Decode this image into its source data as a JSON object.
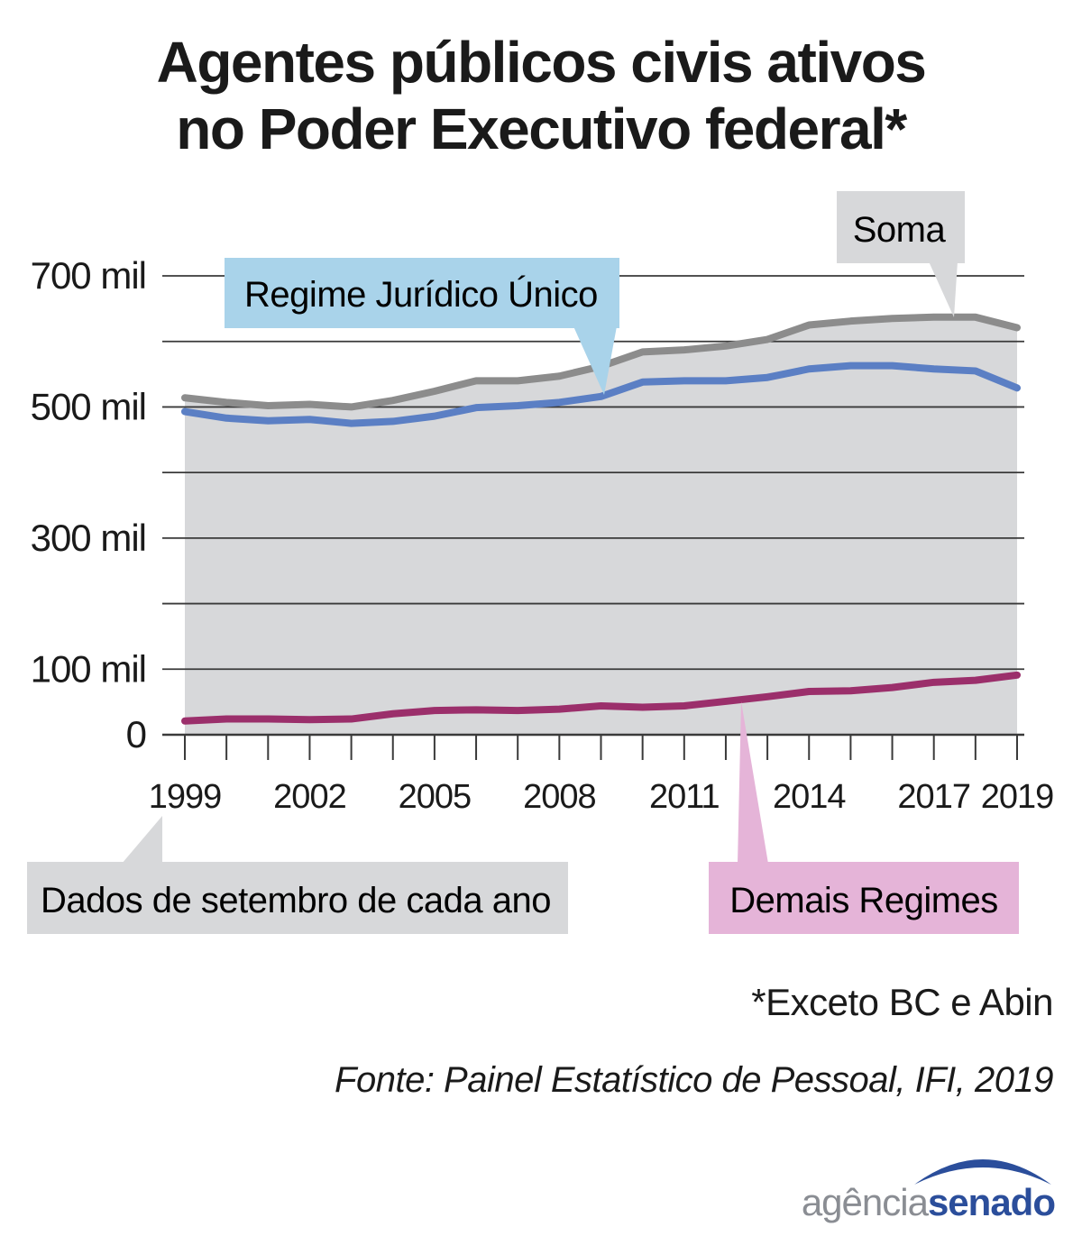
{
  "title": {
    "line1": "Agentes públicos civis ativos",
    "line2": "no Poder Executivo federal*"
  },
  "chart_data": {
    "type": "line",
    "title": "Agentes públicos civis ativos no Poder Executivo federal*",
    "xlabel": "",
    "ylabel": "",
    "ylim": [
      0,
      700000
    ],
    "x": [
      1999,
      2000,
      2001,
      2002,
      2003,
      2004,
      2005,
      2006,
      2007,
      2008,
      2009,
      2010,
      2011,
      2012,
      2013,
      2014,
      2015,
      2016,
      2017,
      2018,
      2019
    ],
    "y_ticks": [
      {
        "value": 700000,
        "label": "700 mil"
      },
      {
        "value": 500000,
        "label": "500 mil"
      },
      {
        "value": 300000,
        "label": "300 mil"
      },
      {
        "value": 100000,
        "label": "100 mil"
      },
      {
        "value": 0,
        "label": "0"
      }
    ],
    "y_gridlines": [
      100000,
      200000,
      300000,
      400000,
      500000,
      600000,
      700000
    ],
    "x_tick_labels": [
      {
        "x": 1999,
        "label": "1999"
      },
      {
        "x": 2002,
        "label": "2002"
      },
      {
        "x": 2005,
        "label": "2005"
      },
      {
        "x": 2008,
        "label": "2008"
      },
      {
        "x": 2011,
        "label": "2011"
      },
      {
        "x": 2014,
        "label": "2014"
      },
      {
        "x": 2017,
        "label": "2017"
      },
      {
        "x": 2019,
        "label": "2019"
      }
    ],
    "series": [
      {
        "name": "Soma",
        "color": "#8c8c8c",
        "fill": "#d7d8da",
        "values": [
          514000,
          507000,
          502000,
          504000,
          500000,
          510000,
          524000,
          540000,
          540000,
          547000,
          562000,
          584000,
          587000,
          593000,
          603000,
          625000,
          631000,
          635000,
          637000,
          637000,
          621000
        ]
      },
      {
        "name": "Regime Jurídico Único",
        "color": "#5b7fc4",
        "values": [
          493000,
          483000,
          479000,
          481000,
          475000,
          478000,
          486000,
          499000,
          502000,
          507000,
          516000,
          538000,
          540000,
          540000,
          545000,
          558000,
          563000,
          563000,
          558000,
          555000,
          529000
        ]
      },
      {
        "name": "Demais Regimes",
        "color": "#9b2f6b",
        "values": [
          21000,
          24000,
          24000,
          23000,
          24000,
          32000,
          37000,
          38000,
          37000,
          39000,
          44000,
          42000,
          44000,
          51000,
          58000,
          66000,
          67000,
          72000,
          80000,
          83000,
          91000
        ]
      }
    ],
    "callouts": {
      "soma": {
        "label": "Soma",
        "bg": "#d7d8da"
      },
      "rju": {
        "label": "Regime Jurídico Único",
        "bg": "#a9d3ea"
      },
      "demais": {
        "label": "Demais Regimes",
        "bg": "#e5b4d8"
      },
      "dados": {
        "label": "Dados de setembro de cada ano",
        "bg": "#d7d8da"
      }
    },
    "annotations": [
      "Dados de setembro de cada ano"
    ]
  },
  "footnote": "*Exceto BC e Abin",
  "source": "Fonte: Painel Estatístico de Pessoal, IFI, 2019",
  "logo": {
    "agencia": "agência",
    "senado": "senado"
  }
}
